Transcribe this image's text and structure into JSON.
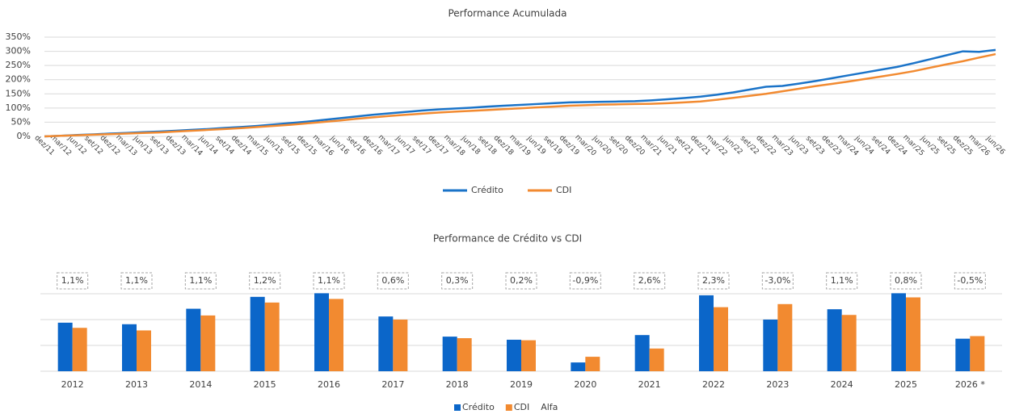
{
  "chart_data": [
    {
      "type": "line",
      "title": "Performance Acumulada",
      "categories": [
        "dez/11",
        "mar/12",
        "jun/12",
        "set/12",
        "dez/12",
        "mar/13",
        "jun/13",
        "set/13",
        "dez/13",
        "mar/14",
        "jun/14",
        "set/14",
        "dez/14",
        "mar/15",
        "jun/15",
        "set/15",
        "dez/15",
        "mar/16",
        "jun/16",
        "set/16",
        "dez/16",
        "mar/17",
        "jun/17",
        "set/17",
        "dez/17",
        "mar/18",
        "jun/18",
        "set/18",
        "dez/18",
        "mar/19",
        "jun/19",
        "set/19",
        "dez/19",
        "mar/20",
        "jun/20",
        "set/20",
        "dez/20",
        "mar/21",
        "jun/21",
        "set/21",
        "dez/21",
        "mar/22",
        "jun/22",
        "set/22",
        "dez/22",
        "mar/23",
        "jun/23",
        "set/23",
        "dez/23",
        "mar/24",
        "jun/24",
        "set/24",
        "dez/24",
        "mar/25",
        "jun/25",
        "set/25",
        "dez/25",
        "mar/26",
        "jun/26"
      ],
      "series": [
        {
          "name": "Crédito",
          "color": "#1a73c8",
          "values": [
            0,
            2,
            5,
            7,
            10,
            12,
            15,
            17,
            20,
            23,
            26,
            30,
            33,
            37,
            42,
            47,
            52,
            58,
            64,
            70,
            76,
            81,
            86,
            91,
            95,
            98,
            101,
            105,
            108,
            111,
            114,
            117,
            120,
            121,
            122,
            123,
            124,
            127,
            131,
            135,
            140,
            147,
            155,
            165,
            175,
            178,
            186,
            195,
            205,
            215,
            225,
            235,
            245,
            258,
            272,
            286,
            300,
            298,
            305
          ]
        },
        {
          "name": "CDI",
          "color": "#f28a30",
          "values": [
            0,
            2,
            4,
            6,
            8,
            10,
            12,
            14,
            17,
            20,
            23,
            26,
            29,
            33,
            37,
            41,
            46,
            51,
            56,
            62,
            67,
            72,
            76,
            80,
            84,
            87,
            90,
            93,
            96,
            99,
            102,
            105,
            108,
            110,
            112,
            113,
            114,
            115,
            117,
            120,
            123,
            129,
            136,
            143,
            150,
            159,
            168,
            177,
            185,
            193,
            202,
            211,
            220,
            230,
            242,
            254,
            265,
            278,
            290
          ]
        }
      ],
      "ylim": [
        0,
        350
      ],
      "yticks": [
        {
          "value": 0,
          "label": "0%"
        },
        {
          "value": 50,
          "label": "50%"
        },
        {
          "value": 100,
          "label": "100%"
        },
        {
          "value": 150,
          "label": "150%"
        },
        {
          "value": 200,
          "label": "200%"
        },
        {
          "value": 250,
          "label": "250%"
        },
        {
          "value": 300,
          "label": "300%"
        },
        {
          "value": 350,
          "label": "350%"
        }
      ],
      "grid": true
    },
    {
      "type": "bar",
      "title": "Performance de Crédito vs CDI",
      "categories": [
        "2012",
        "2013",
        "2014",
        "2015",
        "2016",
        "2017",
        "2018",
        "2019",
        "2020",
        "2021",
        "2022",
        "2023",
        "2024",
        "2025",
        "2026 *"
      ],
      "series": [
        {
          "name": "Crédito",
          "color": "#0b66c9",
          "values": [
            9.4,
            9.1,
            12.1,
            14.4,
            15.1,
            10.6,
            6.7,
            6.1,
            1.7,
            7.0,
            14.7,
            10.0,
            12.0,
            15.1,
            6.3
          ]
        },
        {
          "name": "CDI",
          "color": "#f28a30",
          "values": [
            8.4,
            7.9,
            10.8,
            13.3,
            14.0,
            10.0,
            6.4,
            6.0,
            2.8,
            4.4,
            12.4,
            13.0,
            10.9,
            14.3,
            6.8
          ]
        },
        {
          "name": "Alfa",
          "values": [
            1.1,
            1.1,
            1.1,
            1.2,
            1.1,
            0.6,
            0.3,
            0.2,
            -0.9,
            2.6,
            2.3,
            -3.0,
            1.1,
            0.8,
            -0.5
          ],
          "value_labels": [
            "1,1%",
            "1,1%",
            "1,1%",
            "1,2%",
            "1,1%",
            "0,6%",
            "0,3%",
            "0,2%",
            "-0,9%",
            "2,6%",
            "2,3%",
            "-3,0%",
            "1,1%",
            "0,8%",
            "-0,5%"
          ],
          "positive_color": "#404040",
          "negative_color": "#c00000"
        }
      ],
      "ylim": [
        0,
        15
      ],
      "yticks": [
        0,
        5,
        10,
        15
      ],
      "grid": true,
      "tick_labels": false
    }
  ]
}
